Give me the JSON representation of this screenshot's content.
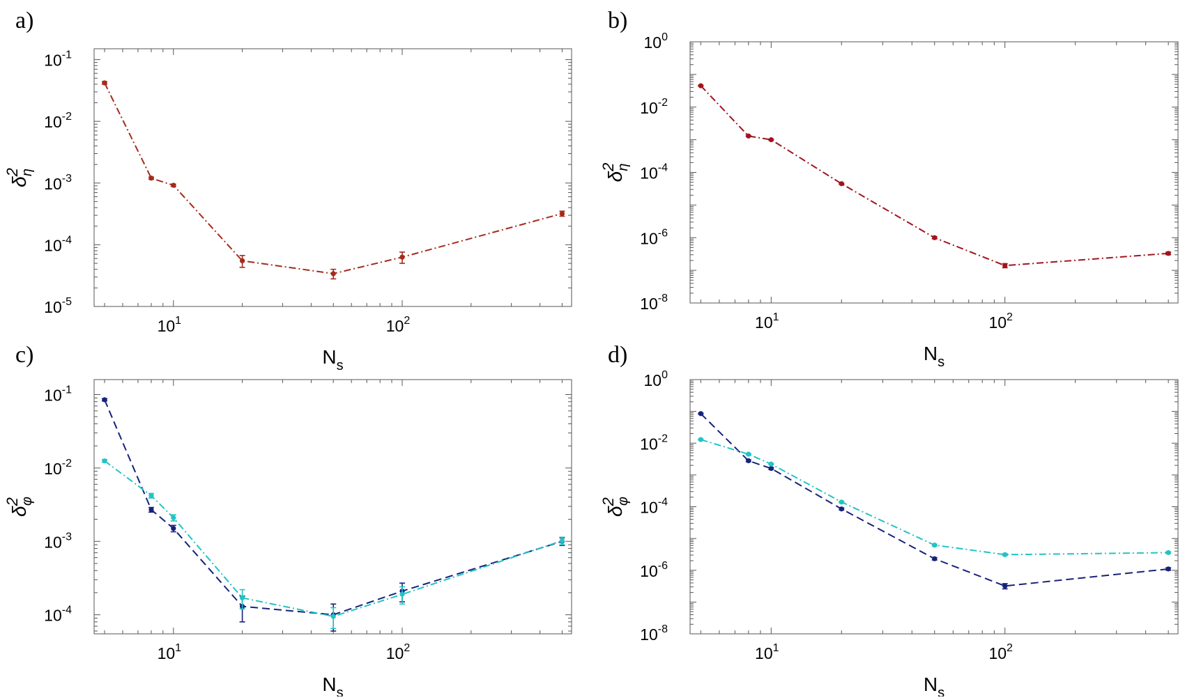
{
  "figure": {
    "description": ""
  },
  "chart_data": [
    {
      "panel_label": "a)",
      "type": "line",
      "xscale": "log",
      "yscale": "log",
      "xlim": [
        4.5,
        550
      ],
      "ylim": [
        1e-05,
        0.15
      ],
      "xticks": [
        {
          "base": "10",
          "exp": "1",
          "value": 10
        },
        {
          "base": "10",
          "exp": "2",
          "value": 100
        }
      ],
      "yticks": [
        {
          "base": "10",
          "exp": "-5",
          "value": 1e-05
        },
        {
          "base": "10",
          "exp": "-4",
          "value": 0.0001
        },
        {
          "base": "10",
          "exp": "-3",
          "value": 0.001
        },
        {
          "base": "10",
          "exp": "-2",
          "value": 0.01
        },
        {
          "base": "10",
          "exp": "-1",
          "value": 0.1
        }
      ],
      "xlabel": {
        "main": "N",
        "sub": "s"
      },
      "ylabel": {
        "main": "δ",
        "sup": "2",
        "sub": "η"
      },
      "series": [
        {
          "name": "delta2_eta",
          "color": "#a52a1a",
          "dash": "dashdot",
          "x": [
            5,
            8,
            10,
            20,
            50,
            100,
            500
          ],
          "y": [
            0.042,
            0.0012,
            0.00092,
            5.5e-05,
            3.4e-05,
            6.3e-05,
            0.00032
          ],
          "err": [
            0.002,
            5e-05,
            4e-05,
            1.2e-05,
            6e-06,
            1.3e-05,
            3e-05
          ]
        }
      ]
    },
    {
      "panel_label": "b)",
      "type": "line",
      "xscale": "log",
      "yscale": "log",
      "xlim": [
        4.5,
        550
      ],
      "ylim": [
        1e-08,
        1
      ],
      "xticks": [
        {
          "base": "10",
          "exp": "1",
          "value": 10
        },
        {
          "base": "10",
          "exp": "2",
          "value": 100
        }
      ],
      "yticks": [
        {
          "base": "10",
          "exp": "-8",
          "value": 1e-08
        },
        {
          "base": "10",
          "exp": "-6",
          "value": 1e-06
        },
        {
          "base": "10",
          "exp": "-4",
          "value": 0.0001
        },
        {
          "base": "10",
          "exp": "-2",
          "value": 0.01
        },
        {
          "base": "10",
          "exp": "0",
          "value": 1
        }
      ],
      "xlabel": {
        "main": "N",
        "sub": "s"
      },
      "ylabel": {
        "main": "δ",
        "sup": "2",
        "sub": "η"
      },
      "series": [
        {
          "name": "delta2_eta",
          "color": "#a0141e",
          "dash": "dashdot",
          "x": [
            5,
            8,
            10,
            20,
            50,
            100,
            500
          ],
          "y": [
            0.045,
            0.0013,
            0.001,
            4.5e-05,
            1e-06,
            1.4e-07,
            3.3e-07
          ],
          "err": [
            0.002,
            5e-05,
            4e-05,
            2e-06,
            8e-08,
            2e-08,
            3e-08
          ]
        }
      ]
    },
    {
      "panel_label": "c)",
      "type": "line",
      "xscale": "log",
      "yscale": "log",
      "xlim": [
        4.5,
        550
      ],
      "ylim": [
        5.5e-05,
        0.16
      ],
      "xticks": [
        {
          "base": "10",
          "exp": "1",
          "value": 10
        },
        {
          "base": "10",
          "exp": "2",
          "value": 100
        }
      ],
      "yticks": [
        {
          "base": "10",
          "exp": "-4",
          "value": 0.0001
        },
        {
          "base": "10",
          "exp": "-3",
          "value": 0.001
        },
        {
          "base": "10",
          "exp": "-2",
          "value": 0.01
        },
        {
          "base": "10",
          "exp": "-1",
          "value": 0.1
        }
      ],
      "xlabel": {
        "main": "N",
        "sub": "s"
      },
      "ylabel": {
        "main": "δ",
        "sup": "2",
        "sub": "φ"
      },
      "series": [
        {
          "name": "dark-blue",
          "color": "#17227a",
          "dash": "dashed",
          "x": [
            5,
            8,
            10,
            20,
            50,
            100,
            500
          ],
          "y": [
            0.085,
            0.0027,
            0.0015,
            0.00013,
            0.0001,
            0.00021,
            0.001
          ],
          "err": [
            0.003,
            0.0002,
            0.00015,
            5e-05,
            4e-05,
            6e-05,
            0.00012
          ]
        },
        {
          "name": "cyan",
          "color": "#22c4c4",
          "dash": "dashdot",
          "x": [
            5,
            8,
            10,
            20,
            50,
            100,
            500
          ],
          "y": [
            0.0125,
            0.0042,
            0.0021,
            0.00017,
            9.5e-05,
            0.00019,
            0.00102
          ],
          "err": [
            0.0005,
            0.0003,
            0.0002,
            5e-05,
            3e-05,
            5e-05,
            0.00012
          ]
        }
      ]
    },
    {
      "panel_label": "d)",
      "type": "line",
      "xscale": "log",
      "yscale": "log",
      "xlim": [
        4.5,
        550
      ],
      "ylim": [
        1e-08,
        1
      ],
      "xticks": [
        {
          "base": "10",
          "exp": "1",
          "value": 10
        },
        {
          "base": "10",
          "exp": "2",
          "value": 100
        }
      ],
      "yticks": [
        {
          "base": "10",
          "exp": "-8",
          "value": 1e-08
        },
        {
          "base": "10",
          "exp": "-6",
          "value": 1e-06
        },
        {
          "base": "10",
          "exp": "-4",
          "value": 0.0001
        },
        {
          "base": "10",
          "exp": "-2",
          "value": 0.01
        },
        {
          "base": "10",
          "exp": "0",
          "value": 1
        }
      ],
      "xlabel": {
        "main": "N",
        "sub": "s"
      },
      "ylabel": {
        "main": "δ",
        "sup": "2",
        "sub": "φ"
      },
      "series": [
        {
          "name": "dark-blue",
          "color": "#17227a",
          "dash": "dashed",
          "x": [
            5,
            8,
            10,
            20,
            50,
            100,
            500
          ],
          "y": [
            0.085,
            0.0028,
            0.0016,
            8.5e-05,
            2.3e-06,
            3.2e-07,
            1.1e-06
          ],
          "err": [
            0.003,
            0.0002,
            0.00012,
            6e-06,
            2e-07,
            6e-08,
            1e-07
          ]
        },
        {
          "name": "cyan",
          "color": "#22c4c4",
          "dash": "dashdot",
          "x": [
            5,
            8,
            10,
            20,
            50,
            100,
            500
          ],
          "y": [
            0.013,
            0.0045,
            0.0022,
            0.00014,
            6.2e-06,
            3.1e-06,
            3.6e-06
          ],
          "err": [
            0.0005,
            0.0002,
            0.0001,
            8e-06,
            4e-07,
            2e-07,
            2e-07
          ]
        }
      ]
    }
  ]
}
